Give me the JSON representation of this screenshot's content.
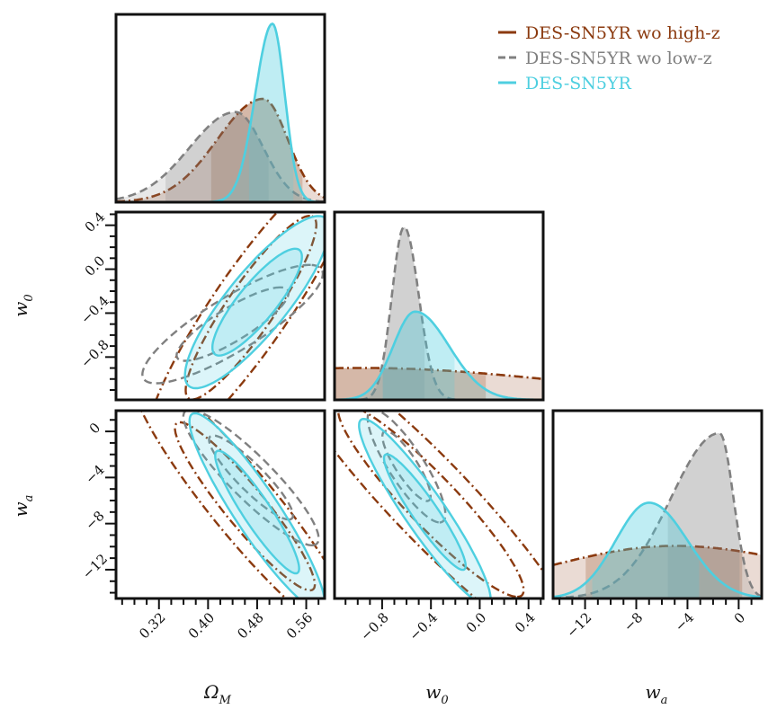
{
  "chart_data": {
    "type": "corner",
    "parameters": [
      {
        "key": "om",
        "label": "Ω",
        "label_sub": "M",
        "range": [
          0.25,
          0.59
        ],
        "ticks": [
          0.32,
          0.4,
          0.48,
          0.56
        ],
        "tick_labels": [
          "0.32",
          "0.40",
          "0.48",
          "0.56"
        ]
      },
      {
        "key": "w0",
        "label": "w",
        "label_sub": "0",
        "range": [
          -1.19,
          0.52
        ],
        "ticks": [
          -0.8,
          -0.4,
          0.0,
          0.4
        ],
        "tick_labels": [
          "−0.8",
          "−0.4",
          "0.0",
          "0.4"
        ]
      },
      {
        "key": "wa",
        "label": "w",
        "label_sub": "a",
        "range": [
          -14.5,
          1.8
        ],
        "ticks": [
          -12,
          -8,
          -4,
          0
        ],
        "tick_labels": [
          "−12",
          "−8",
          "−4",
          "0"
        ]
      }
    ],
    "series": [
      {
        "name": "DES-SN5YR wo high-z",
        "color": "#8b3a0f",
        "dash": "dashdot",
        "om": {
          "peak": 0.49,
          "sl": 0.075,
          "sr": 0.04,
          "h": 0.55,
          "band": [
            0.405,
            0.555
          ]
        },
        "w0": {
          "peak": -0.95,
          "sl": 2.0,
          "sr": 1.6,
          "h": 0.17,
          "band": [
            -1.19,
            0.05
          ]
        },
        "wa": {
          "peak": -5.0,
          "sl": 10.0,
          "sr": 11.0,
          "h": 0.28,
          "band": [
            -12.0,
            0.3
          ]
        },
        "om_w0": {
          "cx": 0.47,
          "cy": -0.35,
          "sx": 0.07,
          "sy": 0.55,
          "rho": 0.9
        },
        "om_wa": {
          "cx": 0.46,
          "cy": -6.5,
          "sx": 0.075,
          "sy": 4.8,
          "rho": -0.93
        },
        "w0_wa": {
          "cx": -0.4,
          "cy": -6.0,
          "sx": 0.5,
          "sy": 5.5,
          "rho": -0.93
        }
      },
      {
        "name": "DES-SN5YR wo low-z",
        "color": "#808080",
        "dash": "dashed",
        "om": {
          "peak": 0.445,
          "sl": 0.075,
          "sr": 0.045,
          "h": 0.48,
          "band": [
            0.33,
            0.5
          ]
        },
        "w0": {
          "peak": -0.62,
          "sl": 0.1,
          "sr": 0.12,
          "h": 0.92,
          "band": [
            -0.8,
            -0.45
          ]
        },
        "wa": {
          "peak": -1.5,
          "sl": 3.8,
          "sr": 1.1,
          "h": 0.88,
          "band": [
            -5.6,
            0.1
          ]
        },
        "om_w0": {
          "cx": 0.44,
          "cy": -0.5,
          "sx": 0.06,
          "sy": 0.22,
          "rho": 0.85
        },
        "om_wa": {
          "cx": 0.47,
          "cy": -4.0,
          "sx": 0.045,
          "sy": 2.4,
          "rho": -0.9
        },
        "w0_wa": {
          "cx": -0.6,
          "cy": -3.0,
          "sx": 0.13,
          "sy": 2.0,
          "rho": -0.85
        }
      },
      {
        "name": "DES-SN5YR",
        "color": "#4ecfe0",
        "dash": "solid",
        "om": {
          "peak": 0.505,
          "sl": 0.028,
          "sr": 0.02,
          "h": 0.95,
          "band": [
            0.465,
            0.54
          ]
        },
        "w0": {
          "peak": -0.53,
          "sl": 0.18,
          "sr": 0.28,
          "h": 0.47,
          "band": [
            -0.8,
            -0.2
          ]
        },
        "wa": {
          "peak": -7.0,
          "sl": 2.6,
          "sr": 3.0,
          "h": 0.51,
          "band": [
            -11.5,
            -3.0
          ]
        },
        "om_w0": {
          "cx": 0.48,
          "cy": -0.3,
          "sx": 0.048,
          "sy": 0.32,
          "rho": 0.85
        },
        "om_wa": {
          "cx": 0.48,
          "cy": -7.0,
          "sx": 0.045,
          "sy": 3.5,
          "rho": -0.92
        },
        "w0_wa": {
          "cx": -0.45,
          "cy": -7.0,
          "sx": 0.22,
          "sy": 3.3,
          "rho": -0.93
        }
      }
    ],
    "legend_position": "top-right"
  }
}
